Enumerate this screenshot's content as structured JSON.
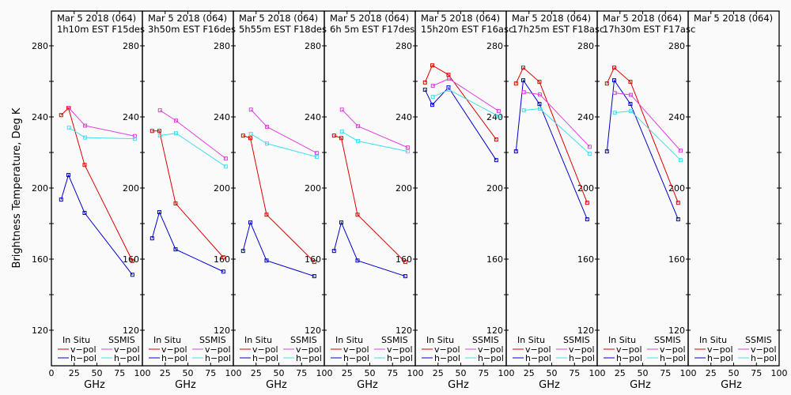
{
  "figure": {
    "ylabel": "Brightness Temperature, Deg K",
    "xlabel": "GHz",
    "legend": {
      "group_left": "In Situ",
      "group_right": "SSMIS",
      "entries": [
        {
          "name": "In Situ v-pol",
          "label": "v−pol",
          "color": "#e00000"
        },
        {
          "name": "In Situ h-pol",
          "label": "h−pol",
          "color": "#0000d0"
        },
        {
          "name": "SSMIS v-pol",
          "label": "v−pol",
          "color": "#e040e0"
        },
        {
          "name": "SSMIS h-pol",
          "label": "h−pol",
          "color": "#40e0f0"
        }
      ]
    }
  },
  "chart_data": [
    {
      "type": "line",
      "title_line1": "Mar 5 2018 (064)",
      "title_line2": "1h10m EST F15des",
      "xlabel": "GHz",
      "ylabel": "Brightness Temperature, Deg K",
      "xlim": [
        0,
        100
      ],
      "ylim": [
        110,
        290
      ],
      "xticks": [
        "0",
        "25",
        "50",
        "75",
        "100"
      ],
      "yticks": [
        "120",
        "160",
        "200",
        "240",
        "280"
      ],
      "series": [
        {
          "name": "In Situ v-pol",
          "x": [
            10.7,
            18.7,
            36.5,
            89.0
          ],
          "y": [
            241.0,
            245.0,
            213.0,
            159.0
          ]
        },
        {
          "name": "In Situ h-pol",
          "x": [
            10.7,
            18.7,
            36.5,
            89.0
          ],
          "y": [
            193.5,
            207.3,
            186.0,
            151.2
          ]
        },
        {
          "name": "SSMIS v-pol",
          "x": [
            19.35,
            37.0,
            91.65
          ],
          "y": [
            245.0,
            235.1,
            229.2
          ]
        },
        {
          "name": "SSMIS h-pol",
          "x": [
            19.35,
            37.0,
            91.65
          ],
          "y": [
            233.9,
            228.4,
            227.7
          ]
        }
      ]
    },
    {
      "type": "line",
      "title_line1": "Mar 5 2018 (064)",
      "title_line2": "3h50m EST F16des",
      "xlabel": "GHz",
      "ylabel": "Brightness Temperature, Deg K",
      "xlim": [
        0,
        100
      ],
      "ylim": [
        110,
        290
      ],
      "xticks": [
        "25",
        "50",
        "75",
        "100"
      ],
      "yticks": [
        "120",
        "160",
        "200",
        "240",
        "280"
      ],
      "series": [
        {
          "name": "In Situ v-pol",
          "x": [
            10.7,
            18.7,
            36.5,
            89.0
          ],
          "y": [
            232.1,
            232.1,
            191.3,
            161.0
          ]
        },
        {
          "name": "In Situ h-pol",
          "x": [
            10.7,
            18.7,
            36.5,
            89.0
          ],
          "y": [
            171.7,
            186.4,
            165.5,
            153.0
          ]
        },
        {
          "name": "SSMIS v-pol",
          "x": [
            19.35,
            37.0,
            91.65
          ],
          "y": [
            243.7,
            237.9,
            216.6
          ]
        },
        {
          "name": "SSMIS h-pol",
          "x": [
            19.35,
            37.0,
            91.65
          ],
          "y": [
            229.5,
            230.8,
            212.1
          ]
        }
      ]
    },
    {
      "type": "line",
      "title_line1": "Mar 5 2018 (064)",
      "title_line2": "5h55m EST F18des",
      "xlabel": "GHz",
      "ylabel": "Brightness Temperature, Deg K",
      "xlim": [
        0,
        100
      ],
      "ylim": [
        110,
        290
      ],
      "xticks": [
        "25",
        "50",
        "75",
        "100"
      ],
      "yticks": [
        "120",
        "160",
        "200",
        "240",
        "280"
      ],
      "series": [
        {
          "name": "In Situ v-pol",
          "x": [
            10.7,
            18.7,
            36.5,
            89.0
          ],
          "y": [
            229.5,
            228.1,
            185.0,
            158.4
          ]
        },
        {
          "name": "In Situ h-pol",
          "x": [
            10.7,
            18.7,
            36.5,
            89.0
          ],
          "y": [
            164.6,
            180.6,
            159.2,
            150.4
          ]
        },
        {
          "name": "SSMIS v-pol",
          "x": [
            19.35,
            37.0,
            91.65
          ],
          "y": [
            244.1,
            234.4,
            219.7
          ]
        },
        {
          "name": "SSMIS h-pol",
          "x": [
            19.35,
            37.0,
            91.65
          ],
          "y": [
            230.4,
            225.0,
            217.5
          ]
        }
      ]
    },
    {
      "type": "line",
      "title_line1": "Mar 5 2018 (064)",
      "title_line2": "6h 5m EST F17des",
      "xlabel": "GHz",
      "ylabel": "Brightness Temperature, Deg K",
      "xlim": [
        0,
        100
      ],
      "ylim": [
        110,
        290
      ],
      "xticks": [
        "25",
        "50",
        "75",
        "100"
      ],
      "yticks": [
        "120",
        "160",
        "200",
        "240",
        "280"
      ],
      "series": [
        {
          "name": "In Situ v-pol",
          "x": [
            10.7,
            18.7,
            36.5,
            89.0
          ],
          "y": [
            229.5,
            228.1,
            185.0,
            158.4
          ]
        },
        {
          "name": "In Situ h-pol",
          "x": [
            10.7,
            18.7,
            36.5,
            89.0
          ],
          "y": [
            164.6,
            180.6,
            159.2,
            150.4
          ]
        },
        {
          "name": "SSMIS v-pol",
          "x": [
            19.35,
            37.0,
            91.65
          ],
          "y": [
            244.1,
            234.8,
            222.8
          ]
        },
        {
          "name": "SSMIS h-pol",
          "x": [
            19.35,
            37.0,
            91.65
          ],
          "y": [
            231.7,
            226.4,
            220.6
          ]
        }
      ]
    },
    {
      "type": "line",
      "title_line1": "Mar 5 2018 (064)",
      "title_line2": "15h20m EST F16asc",
      "xlabel": "GHz",
      "ylabel": "Brightness Temperature, Deg K",
      "xlim": [
        0,
        100
      ],
      "ylim": [
        110,
        290
      ],
      "xticks": [
        "25",
        "50",
        "75",
        "100"
      ],
      "yticks": [
        "120",
        "160",
        "200",
        "240",
        "280"
      ],
      "series": [
        {
          "name": "In Situ v-pol",
          "x": [
            10.7,
            18.7,
            36.5,
            89.0
          ],
          "y": [
            259.4,
            269.0,
            263.7,
            227.3
          ]
        },
        {
          "name": "In Situ h-pol",
          "x": [
            10.7,
            18.7,
            36.5,
            89.0
          ],
          "y": [
            255.3,
            246.8,
            256.6,
            215.7
          ]
        },
        {
          "name": "SSMIS v-pol",
          "x": [
            19.35,
            37.0,
            91.65
          ],
          "y": [
            257.5,
            261.5,
            243.3
          ]
        },
        {
          "name": "SSMIS h-pol",
          "x": [
            19.35,
            37.0,
            91.65
          ],
          "y": [
            251.3,
            255.3,
            240.3
          ]
        }
      ]
    },
    {
      "type": "line",
      "title_line1": "Mar 5 2018 (064)",
      "title_line2": "17h25m EST F18asc",
      "xlabel": "GHz",
      "ylabel": "Brightness Temperature, Deg K",
      "xlim": [
        0,
        100
      ],
      "ylim": [
        110,
        290
      ],
      "xticks": [
        "25",
        "50",
        "75",
        "100"
      ],
      "yticks": [
        "120",
        "160",
        "200",
        "240",
        "280"
      ],
      "series": [
        {
          "name": "In Situ v-pol",
          "x": [
            10.7,
            18.7,
            36.5,
            89.0
          ],
          "y": [
            258.8,
            267.7,
            259.7,
            191.7
          ]
        },
        {
          "name": "In Situ h-pol",
          "x": [
            10.7,
            18.7,
            36.5,
            89.0
          ],
          "y": [
            220.6,
            260.6,
            247.3,
            182.4
          ]
        },
        {
          "name": "SSMIS v-pol",
          "x": [
            19.35,
            37.0,
            91.65
          ],
          "y": [
            253.9,
            252.6,
            223.2
          ]
        },
        {
          "name": "SSMIS h-pol",
          "x": [
            19.35,
            37.0,
            91.65
          ],
          "y": [
            243.7,
            244.6,
            219.3
          ]
        }
      ]
    },
    {
      "type": "line",
      "title_line1": "Mar 5 2018 (064)",
      "title_line2": "17h30m EST F17asc",
      "xlabel": "GHz",
      "ylabel": "Brightness Temperature, Deg K",
      "xlim": [
        0,
        100
      ],
      "ylim": [
        110,
        290
      ],
      "xticks": [
        "25",
        "50",
        "75",
        "100"
      ],
      "yticks": [
        "120",
        "160",
        "200",
        "240",
        "280"
      ],
      "series": [
        {
          "name": "In Situ v-pol",
          "x": [
            10.7,
            18.7,
            36.5,
            89.0
          ],
          "y": [
            258.8,
            267.7,
            259.7,
            191.7
          ]
        },
        {
          "name": "In Situ h-pol",
          "x": [
            10.7,
            18.7,
            36.5,
            89.0
          ],
          "y": [
            220.6,
            260.6,
            247.3,
            182.4
          ]
        },
        {
          "name": "SSMIS v-pol",
          "x": [
            19.35,
            37.0,
            91.65
          ],
          "y": [
            253.5,
            252.4,
            221.0
          ]
        },
        {
          "name": "SSMIS h-pol",
          "x": [
            19.35,
            37.0,
            91.65
          ],
          "y": [
            242.4,
            243.3,
            215.7
          ]
        }
      ]
    },
    {
      "type": "line",
      "title_line1": "Mar 5 2018 (064)",
      "title_line2": "",
      "xlabel": "GHz",
      "ylabel": "Brightness Temperature, Deg K",
      "xlim": [
        0,
        100
      ],
      "ylim": [
        110,
        290
      ],
      "xticks": [
        "25",
        "50",
        "75",
        "100"
      ],
      "yticks": [],
      "series": []
    }
  ]
}
